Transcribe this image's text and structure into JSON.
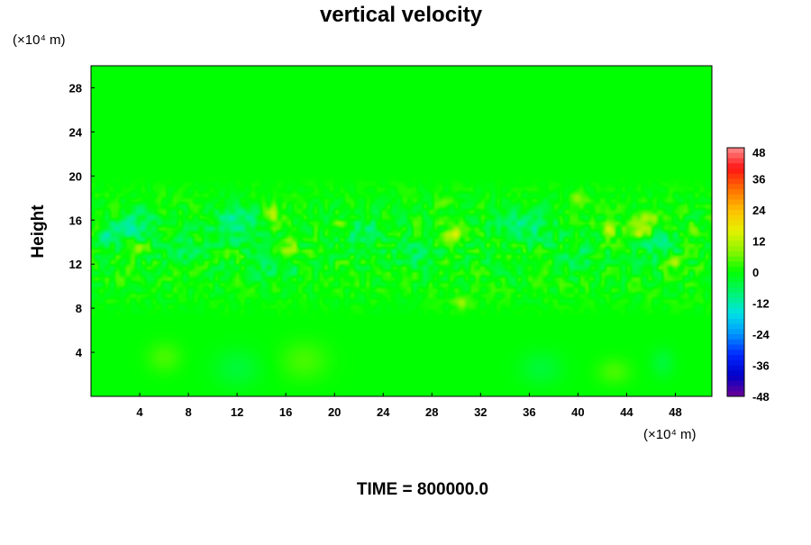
{
  "chart_data": {
    "type": "heatmap",
    "title": "vertical velocity",
    "ylabel": "Height",
    "x_unit": "(×10⁴ m)",
    "y_unit": "(×10⁴ m)",
    "xlim": [
      0,
      51
    ],
    "ylim": [
      0,
      30
    ],
    "x_ticks": [
      4,
      8,
      12,
      16,
      20,
      24,
      28,
      32,
      36,
      40,
      44,
      48
    ],
    "y_ticks": [
      4,
      8,
      12,
      16,
      20,
      24,
      28
    ],
    "footer": "TIME = 800000.0",
    "colorbar": {
      "min": -48,
      "max": 48,
      "ticks": [
        48,
        36,
        24,
        12,
        0,
        -12,
        -24,
        -36,
        -48
      ]
    },
    "field": {
      "background": 0,
      "active_layer_height_range": [
        7,
        20
      ],
      "features": [
        {
          "x": 3.8,
          "y": 15.5,
          "sx": 1.6,
          "sy": 1.5,
          "v": -9
        },
        {
          "x": 12.0,
          "y": 15.8,
          "sx": 2.2,
          "sy": 1.6,
          "v": -10
        },
        {
          "x": 7.5,
          "y": 13.5,
          "sx": 1.8,
          "sy": 1.2,
          "v": -6
        },
        {
          "x": 1.5,
          "y": 14.7,
          "sx": 1.0,
          "sy": 1.0,
          "v": -10
        },
        {
          "x": 22.5,
          "y": 15.0,
          "sx": 2.0,
          "sy": 1.5,
          "v": -7
        },
        {
          "x": 36.0,
          "y": 15.5,
          "sx": 2.5,
          "sy": 1.5,
          "v": -8
        },
        {
          "x": 26.5,
          "y": 13.0,
          "sx": 1.8,
          "sy": 1.3,
          "v": -6
        },
        {
          "x": 46.5,
          "y": 14.0,
          "sx": 2.0,
          "sy": 1.4,
          "v": -7
        },
        {
          "x": 15.0,
          "y": 11.5,
          "sx": 2.0,
          "sy": 1.0,
          "v": -6
        },
        {
          "x": 40.0,
          "y": 12.5,
          "sx": 1.8,
          "sy": 1.2,
          "v": -6
        },
        {
          "x": 14.8,
          "y": 16.5,
          "sx": 0.8,
          "sy": 1.0,
          "v": 11
        },
        {
          "x": 29.8,
          "y": 14.8,
          "sx": 0.8,
          "sy": 0.8,
          "v": 13
        },
        {
          "x": 45.0,
          "y": 15.0,
          "sx": 1.2,
          "sy": 1.0,
          "v": 13
        },
        {
          "x": 46.0,
          "y": 16.2,
          "sx": 1.0,
          "sy": 0.8,
          "v": 10
        },
        {
          "x": 42.5,
          "y": 15.0,
          "sx": 0.6,
          "sy": 0.6,
          "v": 10
        },
        {
          "x": 4.0,
          "y": 13.5,
          "sx": 0.6,
          "sy": 0.6,
          "v": 9
        },
        {
          "x": 16.0,
          "y": 13.5,
          "sx": 0.8,
          "sy": 0.7,
          "v": 9
        },
        {
          "x": 29.0,
          "y": 17.5,
          "sx": 0.6,
          "sy": 0.6,
          "v": 8
        },
        {
          "x": 30.5,
          "y": 8.5,
          "sx": 0.8,
          "sy": 0.6,
          "v": 8
        },
        {
          "x": 48.0,
          "y": 12.0,
          "sx": 0.6,
          "sy": 0.6,
          "v": 9
        },
        {
          "x": 49.5,
          "y": 15.0,
          "sx": 0.6,
          "sy": 0.7,
          "v": 8
        },
        {
          "x": 40.0,
          "y": 18.0,
          "sx": 0.7,
          "sy": 0.6,
          "v": 7
        },
        {
          "x": 20.5,
          "y": 15.5,
          "sx": 0.6,
          "sy": 0.6,
          "v": 6
        },
        {
          "x": 6.0,
          "y": 3.5,
          "sx": 1.4,
          "sy": 1.4,
          "v": 4
        },
        {
          "x": 17.5,
          "y": 3.2,
          "sx": 2.0,
          "sy": 1.8,
          "v": 4
        },
        {
          "x": 43.0,
          "y": 2.2,
          "sx": 1.4,
          "sy": 1.2,
          "v": 4
        },
        {
          "x": 12.0,
          "y": 2.5,
          "sx": 2.0,
          "sy": 1.8,
          "v": -4
        },
        {
          "x": 37.0,
          "y": 2.5,
          "sx": 1.8,
          "sy": 1.6,
          "v": -4
        },
        {
          "x": 47.0,
          "y": 3.0,
          "sx": 1.0,
          "sy": 1.4,
          "v": -4
        }
      ]
    }
  }
}
